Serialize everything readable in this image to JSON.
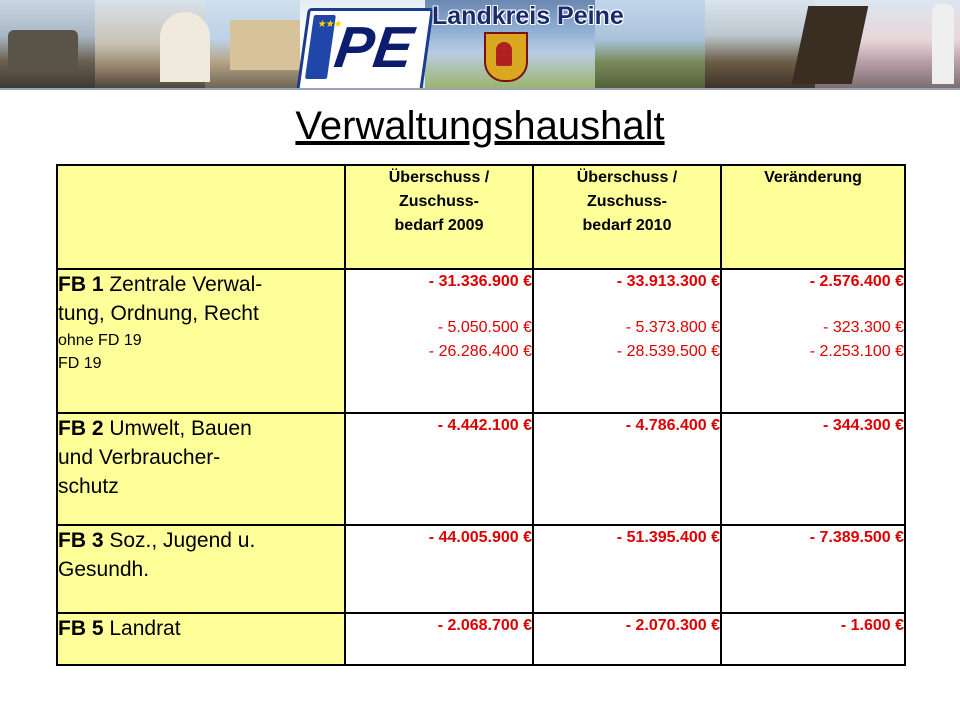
{
  "banner": {
    "plate_text": "PE",
    "eu_stars": "★★★",
    "heading": "Landkreis Peine"
  },
  "title": "Verwaltungshaushalt",
  "table": {
    "headers": [
      "",
      [
        "Überschuss /",
        "Zuschuss-",
        "bedarf 2009"
      ],
      [
        "Überschuss /",
        "Zuschuss-",
        "bedarf 2010"
      ],
      [
        "Veränderung"
      ]
    ],
    "rows": [
      {
        "fb": "FB 1",
        "name_line1": " Zentrale Verwal-",
        "name_line2": "tung, Ordnung, Recht",
        "sub1": "ohne FD 19",
        "sub2": "FD 19",
        "v2009": "- 31.336.900 €",
        "v2009_sub1": "- 5.050.500 €",
        "v2009_sub2": "- 26.286.400 €",
        "v2010": "- 33.913.300 €",
        "v2010_sub1": "- 5.373.800 €",
        "v2010_sub2": "- 28.539.500 €",
        "change": "- 2.576.400 €",
        "change_sub1": "- 323.300 €",
        "change_sub2": "- 2.253.100 €"
      },
      {
        "fb": "FB 2",
        "name_line1": " Umwelt, Bauen",
        "name_line2": "und Verbraucher-",
        "name_line3": "schutz",
        "v2009": "- 4.442.100 €",
        "v2010": "- 4.786.400 €",
        "change": "- 344.300 €"
      },
      {
        "fb": "FB 3",
        "name_line1": " Soz., Jugend u.",
        "name_line2": "Gesundh.",
        "v2009": "- 44.005.900 €",
        "v2010": "- 51.395.400 €",
        "change": "- 7.389.500 €"
      },
      {
        "fb": "FB 5",
        "name_line1": " Landrat",
        "v2009": "- 2.068.700 €",
        "v2010": "- 2.070.300 €",
        "change": "- 1.600 €"
      }
    ]
  },
  "colors": {
    "label_fill": "#ffff99",
    "value_text": "#dd0000"
  }
}
